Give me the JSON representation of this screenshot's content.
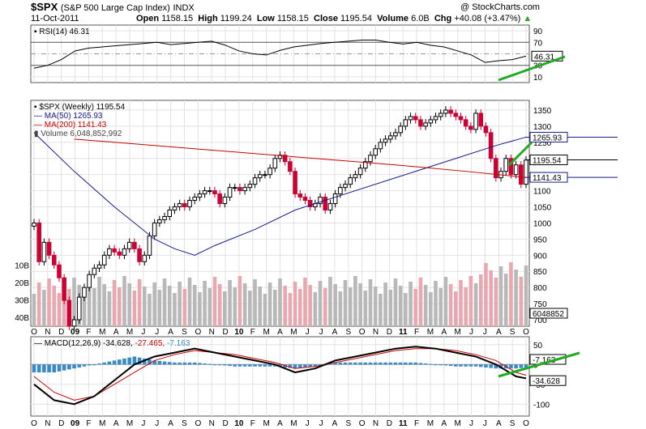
{
  "header": {
    "symbol": "$SPX",
    "name": "(S&P 500 Large Cap Index)",
    "exchange": "INDX",
    "date": "11-Oct-2011",
    "copyright": "@ StockCharts.com",
    "quote": {
      "open_label": "Open",
      "open": "1158.15",
      "high_label": "High",
      "high": "1199.24",
      "low_label": "Low",
      "low": "1158.15",
      "close_label": "Close",
      "close": "1195.54",
      "volume_label": "Volume",
      "volume": "6.0B",
      "chg_label": "Chg",
      "chg": "+40.08 (+3.47%)"
    }
  },
  "colors": {
    "up": "#000000",
    "down": "#cc0033",
    "ma50": "#1a1a8c",
    "ma200": "#cc0000",
    "rsi": "#000000",
    "macd": "#000000",
    "signal": "#cc0000",
    "hist": "#3a8ac8",
    "trend": "#22aa22",
    "vol_up": "#b8b8b8",
    "vol_down": "#e8a8b0"
  },
  "chart_data": {
    "type": "line",
    "x_months": [
      "O",
      "N",
      "D",
      "09",
      "F",
      "M",
      "A",
      "M",
      "J",
      "J",
      "A",
      "S",
      "O",
      "N",
      "D",
      "10",
      "F",
      "M",
      "A",
      "M",
      "J",
      "J",
      "A",
      "S",
      "O",
      "N",
      "D",
      "11",
      "F",
      "M",
      "A",
      "M",
      "J",
      "J",
      "A",
      "S",
      "O"
    ],
    "rsi": {
      "legend": "RSI(14) 46.31",
      "last": "46.31",
      "ticks": [
        "90",
        "70",
        "50",
        "30",
        "10"
      ],
      "ylim": [
        0,
        100
      ],
      "points": [
        [
          0,
          25
        ],
        [
          4,
          30
        ],
        [
          8,
          40
        ],
        [
          12,
          55
        ],
        [
          16,
          60
        ],
        [
          20,
          62
        ],
        [
          24,
          64
        ],
        [
          28,
          66
        ],
        [
          32,
          68
        ],
        [
          36,
          70
        ],
        [
          40,
          66
        ],
        [
          44,
          68
        ],
        [
          48,
          70
        ],
        [
          52,
          72
        ],
        [
          56,
          65
        ],
        [
          60,
          55
        ],
        [
          64,
          50
        ],
        [
          68,
          48
        ],
        [
          72,
          56
        ],
        [
          76,
          62
        ],
        [
          80,
          65
        ],
        [
          84,
          68
        ],
        [
          88,
          70
        ],
        [
          92,
          72
        ],
        [
          96,
          74
        ],
        [
          100,
          74
        ],
        [
          104,
          70
        ],
        [
          108,
          67
        ],
        [
          112,
          70
        ],
        [
          116,
          65
        ],
        [
          120,
          62
        ],
        [
          124,
          55
        ],
        [
          128,
          48
        ],
        [
          132,
          35
        ],
        [
          136,
          38
        ],
        [
          140,
          40
        ],
        [
          144,
          46
        ]
      ]
    },
    "price": {
      "legend_main": "$SPX (Weekly) 1195.54",
      "legend_ma50": "MA(50) 1265.93",
      "legend_ma200": "MA(200) 1141.43",
      "legend_volume": "Volume 6,048,852,992",
      "last_close": "1195.54",
      "ma50_last": "1265.93",
      "ma200_last": "1141.43",
      "ticks": [
        "1350",
        "1300",
        "1250",
        "1200",
        "1150",
        "1100",
        "1050",
        "1000",
        "950",
        "900",
        "850",
        "800",
        "750",
        "700"
      ],
      "ylim": [
        680,
        1380
      ],
      "close": [
        [
          0,
          1000
        ],
        [
          1,
          880
        ],
        [
          2,
          940
        ],
        [
          3,
          900
        ],
        [
          4,
          870
        ],
        [
          5,
          830
        ],
        [
          6,
          760
        ],
        [
          7,
          680
        ],
        [
          8,
          700
        ],
        [
          9,
          770
        ],
        [
          10,
          800
        ],
        [
          11,
          840
        ],
        [
          12,
          860
        ],
        [
          13,
          870
        ],
        [
          14,
          900
        ],
        [
          15,
          920
        ],
        [
          16,
          910
        ],
        [
          17,
          900
        ],
        [
          18,
          920
        ],
        [
          19,
          940
        ],
        [
          20,
          920
        ],
        [
          21,
          880
        ],
        [
          22,
          900
        ],
        [
          23,
          960
        ],
        [
          24,
          1000
        ],
        [
          25,
          1010
        ],
        [
          26,
          1020
        ],
        [
          27,
          1040
        ],
        [
          28,
          1050
        ],
        [
          29,
          1060
        ],
        [
          30,
          1050
        ],
        [
          31,
          1070
        ],
        [
          32,
          1080
        ],
        [
          33,
          1090
        ],
        [
          34,
          1100
        ],
        [
          35,
          1100
        ],
        [
          36,
          1090
        ],
        [
          37,
          1060
        ],
        [
          38,
          1080
        ],
        [
          39,
          1110
        ],
        [
          40,
          1110
        ],
        [
          41,
          1100
        ],
        [
          42,
          1110
        ],
        [
          43,
          1120
        ],
        [
          44,
          1140
        ],
        [
          45,
          1150
        ],
        [
          46,
          1150
        ],
        [
          47,
          1170
        ],
        [
          48,
          1200
        ],
        [
          49,
          1210
        ],
        [
          50,
          1190
        ],
        [
          51,
          1160
        ],
        [
          52,
          1090
        ],
        [
          53,
          1080
        ],
        [
          54,
          1070
        ],
        [
          55,
          1050
        ],
        [
          56,
          1060
        ],
        [
          57,
          1080
        ],
        [
          58,
          1040
        ],
        [
          59,
          1060
        ],
        [
          60,
          1090
        ],
        [
          61,
          1110
        ],
        [
          62,
          1120
        ],
        [
          63,
          1140
        ],
        [
          64,
          1150
        ],
        [
          65,
          1170
        ],
        [
          66,
          1190
        ],
        [
          67,
          1210
        ],
        [
          68,
          1230
        ],
        [
          69,
          1250
        ],
        [
          70,
          1260
        ],
        [
          71,
          1270
        ],
        [
          72,
          1280
        ],
        [
          73,
          1300
        ],
        [
          74,
          1320
        ],
        [
          75,
          1330
        ],
        [
          76,
          1320
        ],
        [
          77,
          1300
        ],
        [
          78,
          1310
        ],
        [
          79,
          1320
        ],
        [
          80,
          1330
        ],
        [
          81,
          1340
        ],
        [
          82,
          1350
        ],
        [
          83,
          1340
        ],
        [
          84,
          1330
        ],
        [
          85,
          1320
        ],
        [
          86,
          1300
        ],
        [
          87,
          1290
        ],
        [
          88,
          1340
        ],
        [
          89,
          1300
        ],
        [
          90,
          1280
        ],
        [
          91,
          1200
        ],
        [
          92,
          1140
        ],
        [
          93,
          1160
        ],
        [
          94,
          1200
        ],
        [
          95,
          1150
        ],
        [
          96,
          1180
        ],
        [
          97,
          1120
        ],
        [
          98,
          1195
        ]
      ],
      "ma50": [
        [
          0,
          1280
        ],
        [
          8,
          1160
        ],
        [
          16,
          1050
        ],
        [
          24,
          950
        ],
        [
          28,
          920
        ],
        [
          32,
          900
        ],
        [
          36,
          930
        ],
        [
          44,
          980
        ],
        [
          52,
          1040
        ],
        [
          60,
          1080
        ],
        [
          72,
          1140
        ],
        [
          84,
          1200
        ],
        [
          92,
          1240
        ],
        [
          98,
          1266
        ]
      ],
      "ma200": [
        [
          8,
          1260
        ],
        [
          24,
          1240
        ],
        [
          40,
          1220
        ],
        [
          56,
          1200
        ],
        [
          72,
          1180
        ],
        [
          86,
          1160
        ],
        [
          98,
          1141
        ]
      ],
      "volume_ticks": [
        "40B",
        "30B",
        "20B",
        "10B"
      ],
      "volume_last": "6048852"
    },
    "macd": {
      "legend_macd": "MACD(12,26,9)",
      "macd_value": "-34.628",
      "signal_value": "-27.465",
      "hist_value": "-7.163",
      "ticks": [
        "50",
        "0",
        "-50",
        "-100"
      ],
      "ylim": [
        -130,
        70
      ],
      "macd_line": [
        [
          0,
          -50
        ],
        [
          4,
          -90
        ],
        [
          8,
          -100
        ],
        [
          12,
          -80
        ],
        [
          16,
          -40
        ],
        [
          20,
          0
        ],
        [
          24,
          20
        ],
        [
          28,
          30
        ],
        [
          32,
          40
        ],
        [
          36,
          30
        ],
        [
          40,
          20
        ],
        [
          44,
          10
        ],
        [
          48,
          0
        ],
        [
          52,
          -20
        ],
        [
          56,
          -10
        ],
        [
          60,
          10
        ],
        [
          64,
          20
        ],
        [
          68,
          30
        ],
        [
          72,
          40
        ],
        [
          76,
          45
        ],
        [
          80,
          40
        ],
        [
          84,
          30
        ],
        [
          88,
          20
        ],
        [
          92,
          0
        ],
        [
          96,
          -30
        ],
        [
          98,
          -35
        ]
      ],
      "signal_line": [
        [
          0,
          -30
        ],
        [
          4,
          -70
        ],
        [
          8,
          -90
        ],
        [
          12,
          -80
        ],
        [
          16,
          -50
        ],
        [
          20,
          -20
        ],
        [
          24,
          10
        ],
        [
          28,
          25
        ],
        [
          32,
          35
        ],
        [
          36,
          30
        ],
        [
          40,
          25
        ],
        [
          44,
          15
        ],
        [
          48,
          5
        ],
        [
          52,
          -10
        ],
        [
          56,
          -5
        ],
        [
          60,
          5
        ],
        [
          64,
          15
        ],
        [
          68,
          25
        ],
        [
          72,
          35
        ],
        [
          76,
          40
        ],
        [
          80,
          40
        ],
        [
          84,
          35
        ],
        [
          88,
          25
        ],
        [
          92,
          10
        ],
        [
          96,
          -20
        ],
        [
          98,
          -27
        ]
      ]
    }
  }
}
